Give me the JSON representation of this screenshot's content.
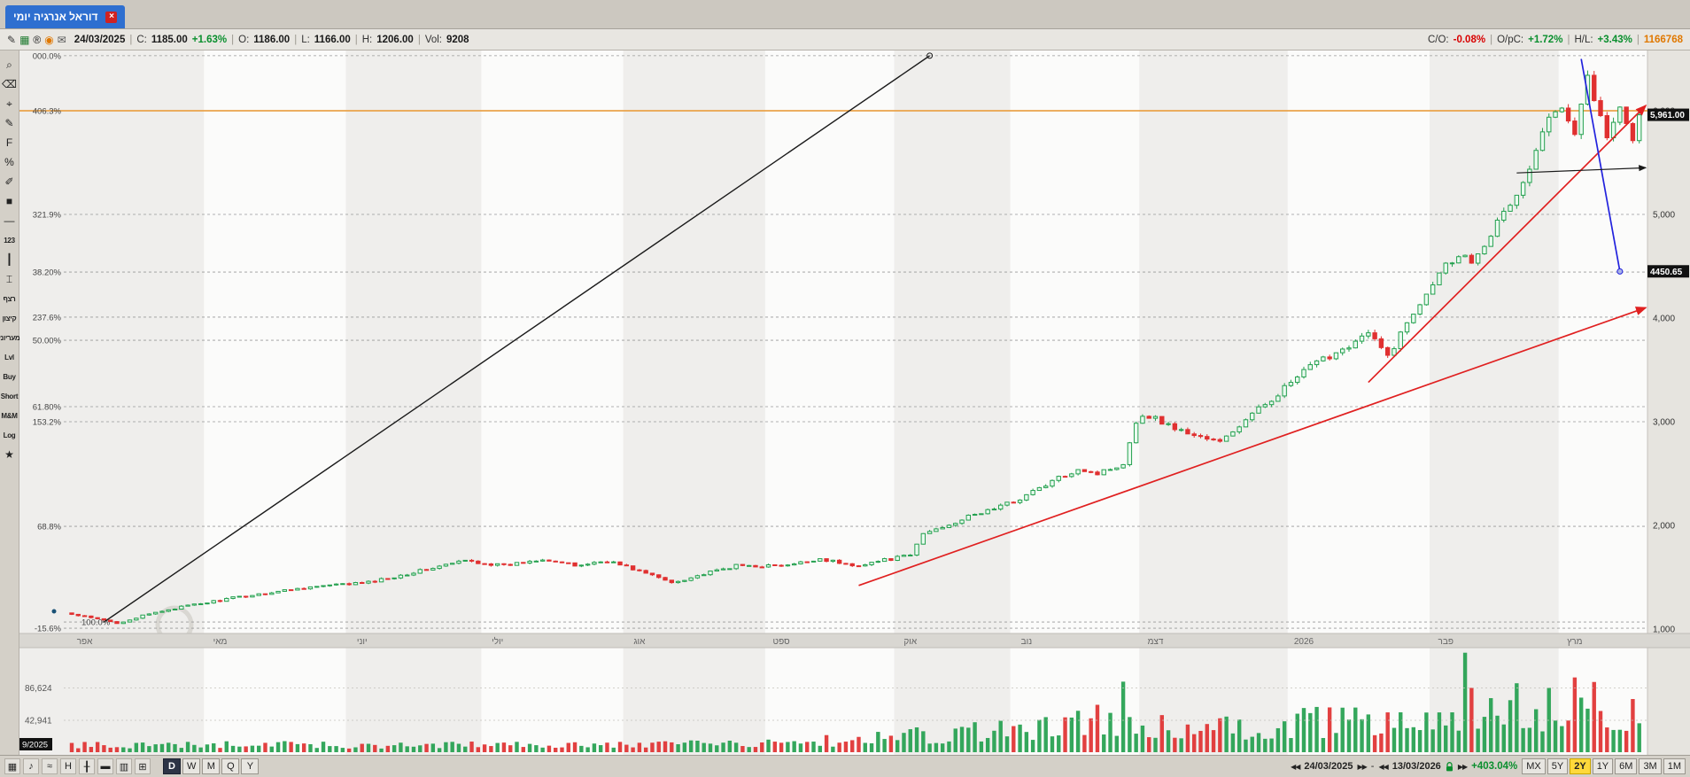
{
  "tab": {
    "label": "דוראל אנרגיה יומי",
    "close": "×"
  },
  "header": {
    "icons": [
      {
        "name": "edit-icon",
        "glyph": "✎",
        "color": "#333333"
      },
      {
        "name": "layers-icon",
        "glyph": "▦",
        "color": "#1c7a2e"
      },
      {
        "name": "registered-icon",
        "glyph": "®",
        "color": "#222222"
      },
      {
        "name": "record-icon",
        "glyph": "◉",
        "color": "#e07800"
      },
      {
        "name": "comment-icon",
        "glyph": "✉",
        "color": "#555555"
      }
    ],
    "date": "24/03/2025",
    "sep": "|",
    "c_label": "C:",
    "c_value": "1185.00",
    "c_change": "+1.63%",
    "o_label": "O:",
    "o_value": "1186.00",
    "l_label": "L:",
    "l_value": "1166.00",
    "h_label": "H:",
    "h_value": "1206.00",
    "vol_label": "Vol:",
    "vol_value": "9208",
    "right": {
      "co_label": "C/O:",
      "co_value": "-0.08%",
      "opc_label": "O/pC:",
      "opc_value": "+1.72%",
      "hl_label": "H/L:",
      "hl_value": "+3.43%",
      "total": "1166768"
    }
  },
  "left_toolbar": [
    {
      "name": "zoom-tool",
      "glyph": "⌕"
    },
    {
      "name": "eraser-tool",
      "glyph": "⌫"
    },
    {
      "name": "crosshair-tool",
      "glyph": "⌖"
    },
    {
      "name": "pencil-tool",
      "glyph": "✎"
    },
    {
      "name": "fibonacci-tool",
      "glyph": "F"
    },
    {
      "name": "percent-tool",
      "glyph": "%"
    },
    {
      "name": "annotate-tool",
      "glyph": "✐"
    },
    {
      "name": "color-swatch",
      "glyph": "■"
    },
    {
      "name": "line-tool",
      "glyph": "—"
    },
    {
      "name": "numbers-tool",
      "glyph": "123",
      "small": true
    },
    {
      "name": "vline-tool",
      "glyph": "┃"
    },
    {
      "name": "range-tool",
      "glyph": "⌶"
    },
    {
      "name": "streak-tool",
      "glyph": "רצף",
      "small": true
    },
    {
      "name": "extreme-tool",
      "glyph": "קיצון",
      "small": true
    },
    {
      "name": "fans-tool",
      "glyph": "מעריוני",
      "small": true
    },
    {
      "name": "level-tool",
      "glyph": "Lvl",
      "small": true
    },
    {
      "name": "buy-tool",
      "glyph": "Buy",
      "small": true
    },
    {
      "name": "short-tool",
      "glyph": "Short",
      "small": true
    },
    {
      "name": "mm-tool",
      "glyph": "M&M",
      "small": true
    },
    {
      "name": "log-scale-toggle",
      "glyph": "Log",
      "small": true
    },
    {
      "name": "favorite-star",
      "glyph": "★"
    }
  ],
  "bottom": {
    "left_icons": [
      {
        "name": "layout-icon",
        "glyph": "▦"
      },
      {
        "name": "note-icon",
        "glyph": "♪"
      },
      {
        "name": "wave-icon",
        "glyph": "≈"
      },
      {
        "name": "hlc-icon",
        "glyph": "H"
      },
      {
        "name": "candle-style-icon",
        "glyph": "╂"
      },
      {
        "name": "line-style-icon",
        "glyph": "▬"
      },
      {
        "name": "bars-style-icon",
        "glyph": "▥"
      },
      {
        "name": "grid-icon",
        "glyph": "⊞"
      }
    ],
    "periods": [
      "D",
      "W",
      "M",
      "Q",
      "Y"
    ],
    "active_period": "D",
    "right": {
      "nav_first": "◀◀",
      "nav_last": "▶▶",
      "dash": "-",
      "start_date": "24/03/2025",
      "end_date": "13/03/2026",
      "change": "+403.04%",
      "ranges": [
        "MX",
        "5Y",
        "2Y",
        "1Y",
        "6M",
        "3M",
        "1M"
      ],
      "active_range": "2Y"
    }
  },
  "chart_data": {
    "type": "candlestick+volume",
    "symbol": "דוראל אנרגיה",
    "timeframe": "יומי",
    "days": 244,
    "last_price": 5961.0,
    "ylim": [
      950,
      6700
    ],
    "price_keypoints": [
      [
        0,
        1140
      ],
      [
        7,
        1060
      ],
      [
        15,
        1190
      ],
      [
        25,
        1300
      ],
      [
        36,
        1400
      ],
      [
        46,
        1450
      ],
      [
        61,
        1660
      ],
      [
        67,
        1610
      ],
      [
        73,
        1680
      ],
      [
        78,
        1610
      ],
      [
        83,
        1660
      ],
      [
        88,
        1560
      ],
      [
        93,
        1450
      ],
      [
        103,
        1610
      ],
      [
        111,
        1610
      ],
      [
        116,
        1680
      ],
      [
        121,
        1610
      ],
      [
        130,
        1710
      ],
      [
        132,
        1920
      ],
      [
        139,
        2080
      ],
      [
        146,
        2230
      ],
      [
        156,
        2550
      ],
      [
        159,
        2500
      ],
      [
        163,
        2600
      ],
      [
        165,
        3010
      ],
      [
        167,
        3060
      ],
      [
        172,
        2910
      ],
      [
        178,
        2800
      ],
      [
        184,
        3120
      ],
      [
        192,
        3530
      ],
      [
        201,
        3850
      ],
      [
        204,
        3630
      ],
      [
        207,
        3950
      ],
      [
        212,
        4460
      ],
      [
        215,
        4620
      ],
      [
        217,
        4560
      ],
      [
        220,
        4820
      ],
      [
        225,
        5290
      ],
      [
        229,
        5920
      ],
      [
        231,
        6080
      ],
      [
        233,
        5820
      ],
      [
        235,
        6340
      ],
      [
        238,
        5720
      ],
      [
        240,
        6080
      ],
      [
        242,
        5720
      ],
      [
        243,
        5961
      ]
    ],
    "volume_keypoints": [
      [
        0,
        9000
      ],
      [
        40,
        10000
      ],
      [
        80,
        9000
      ],
      [
        110,
        12000
      ],
      [
        128,
        22000
      ],
      [
        150,
        30000
      ],
      [
        163,
        50000
      ],
      [
        166,
        40000
      ],
      [
        172,
        30000
      ],
      [
        184,
        38000
      ],
      [
        200,
        42000
      ],
      [
        212,
        52000
      ],
      [
        220,
        62000
      ],
      [
        228,
        58000
      ],
      [
        235,
        70000
      ],
      [
        243,
        52000
      ]
    ],
    "volume_spikes": [
      [
        163,
        95000
      ],
      [
        216,
        134000
      ]
    ],
    "months": [
      {
        "label": "אפר",
        "start": 0
      },
      {
        "label": "מאי",
        "start": 21
      },
      {
        "label": "יוני",
        "start": 43
      },
      {
        "label": "יולי",
        "start": 64
      },
      {
        "label": "אוג",
        "start": 86
      },
      {
        "label": "ספט",
        "start": 108
      },
      {
        "label": "אוק",
        "start": 128
      },
      {
        "label": "נוב",
        "start": 146
      },
      {
        "label": "דצמ",
        "start": 166
      },
      {
        "label": "2026",
        "start": 189
      },
      {
        "label": "פבר",
        "start": 211
      },
      {
        "label": "מרץ",
        "start": 231
      }
    ],
    "fib_levels": [
      {
        "label": "000.0%",
        "price": 6531
      },
      {
        "label": "406.3%",
        "price": 6000,
        "orange": true
      },
      {
        "label": "321.9%",
        "price": 5000
      },
      {
        "label": "38.20%",
        "price": 4444
      },
      {
        "label": "237.6%",
        "price": 4009
      },
      {
        "label": "50.00%",
        "price": 3786
      },
      {
        "label": "61.80%",
        "price": 3145
      },
      {
        "label": "153.2%",
        "price": 3000
      },
      {
        "label": "68.8%",
        "price": 1991
      },
      {
        "label": "100.0%",
        "price": 1068,
        "inset": true
      },
      {
        "label": "-15.6%",
        "price": 1008
      }
    ],
    "price_ticks": [
      {
        "label": "6,000",
        "price": 6000
      },
      {
        "label": "5,000",
        "price": 5000
      },
      {
        "label": "4,000",
        "price": 4000
      },
      {
        "label": "3,000",
        "price": 3000
      },
      {
        "label": "2,000",
        "price": 2000
      },
      {
        "label": "1,000",
        "price": 1000
      }
    ],
    "volume_ticks": [
      {
        "label": "86,624",
        "value": 86624
      },
      {
        "label": "42,941",
        "value": 42941
      }
    ],
    "price_badges": [
      {
        "label": "5,961.00",
        "price": 5961
      },
      {
        "label": "4450.65",
        "price": 4450.65
      }
    ],
    "start_label": "9/2025",
    "colors": {
      "up": "#23a04e",
      "down": "#e03030",
      "fib_line": "#999999",
      "orange_line": "#e8952e"
    },
    "trend_lines": [
      {
        "name": "projection-trendline",
        "color": "#1a1a1a",
        "width": 1.4,
        "d1": 5,
        "p1": 1068,
        "d2": 133,
        "p2": 6531,
        "end_circle": true
      },
      {
        "name": "support-trendline-long",
        "color": "#e02020",
        "width": 1.7,
        "d1": 122,
        "p1": 1420,
        "d2": 244,
        "p2": 4100,
        "arrow": true
      },
      {
        "name": "support-trendline-steep",
        "color": "#e02020",
        "width": 1.7,
        "d1": 201,
        "p1": 3380,
        "d2": 244,
        "p2": 6050,
        "arrow": true
      },
      {
        "name": "down-projection-line",
        "color": "#2222dd",
        "width": 1.7,
        "d1": 234,
        "p1": 6500,
        "d2": 240,
        "p2": 4450,
        "end_dot": true
      },
      {
        "name": "resistance-arrow-line",
        "color": "#1a1a1a",
        "width": 1.2,
        "d1": 224,
        "p1": 5400,
        "d2": 244,
        "p2": 5450,
        "arrow": true
      }
    ]
  }
}
